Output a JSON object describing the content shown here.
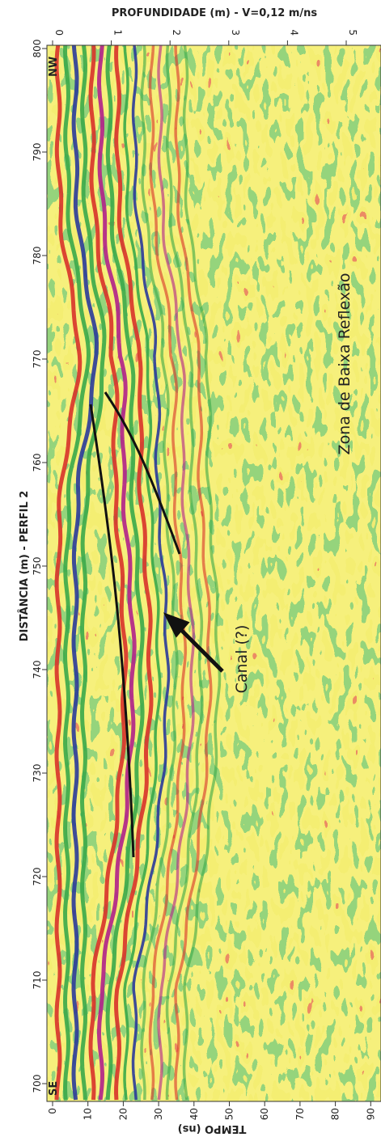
{
  "top_axis": {
    "title": "PROFUNDIDADE (m) - V=0,12 m/ns",
    "ticks": [
      0,
      1,
      2,
      3,
      4,
      5
    ]
  },
  "left_axis": {
    "title": "DISTÂNCIA (m) - PERFIL 2",
    "ticks": [
      800,
      790,
      780,
      770,
      760,
      750,
      740,
      730,
      720,
      710,
      700
    ]
  },
  "bottom_axis": {
    "title": "TEMPO (ns)",
    "ticks": [
      0,
      10,
      20,
      30,
      40,
      50,
      60,
      70,
      80,
      90
    ]
  },
  "annotations": {
    "top_left": "NW",
    "bottom_left": "SE",
    "zone": "Zona de Baixa Reflexão",
    "channel": "Canal (?)"
  }
}
